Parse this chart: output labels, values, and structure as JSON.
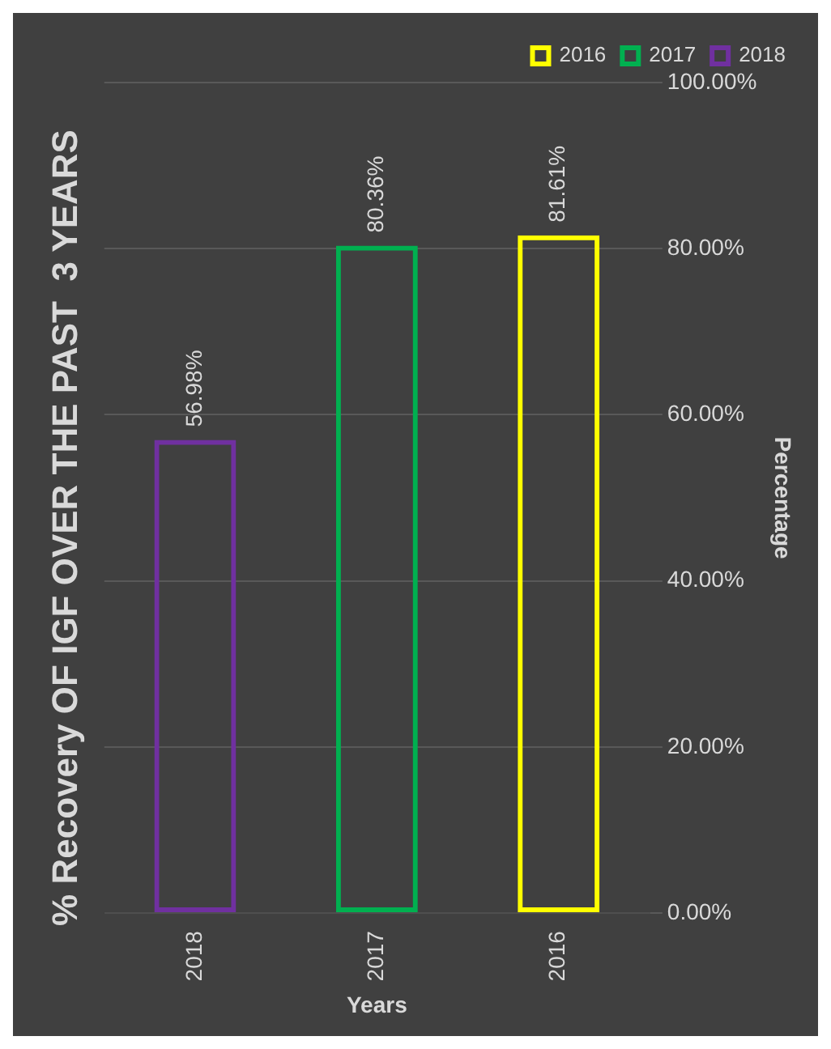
{
  "chart_data": {
    "type": "bar",
    "title": "% Recovery OF IGF OVER THE PAST  3 YEARS",
    "xlabel": "Years",
    "ylabel": "Percentage",
    "categories": [
      "2018",
      "2017",
      "2016"
    ],
    "series": [
      {
        "name": "2016",
        "color": "#ffff00",
        "values": [
          null,
          null,
          81.61
        ],
        "value_labels": [
          null,
          null,
          "81.61%"
        ]
      },
      {
        "name": "2017",
        "color": "#00b050",
        "values": [
          null,
          80.36,
          null
        ],
        "value_labels": [
          null,
          "80.36%",
          null
        ]
      },
      {
        "name": "2018",
        "color": "#7030a0",
        "values": [
          56.98,
          null,
          null
        ],
        "value_labels": [
          "56.98%",
          null,
          null
        ]
      }
    ],
    "ylim": [
      0,
      100
    ],
    "yticks": [
      {
        "value": 0,
        "label": "0.00%"
      },
      {
        "value": 20,
        "label": "20.00%"
      },
      {
        "value": 40,
        "label": "40.00%"
      },
      {
        "value": 60,
        "label": "60.00%"
      },
      {
        "value": 80,
        "label": "80.00%"
      },
      {
        "value": 100,
        "label": "100.00%"
      }
    ],
    "grid": "y",
    "legend": "top right"
  }
}
